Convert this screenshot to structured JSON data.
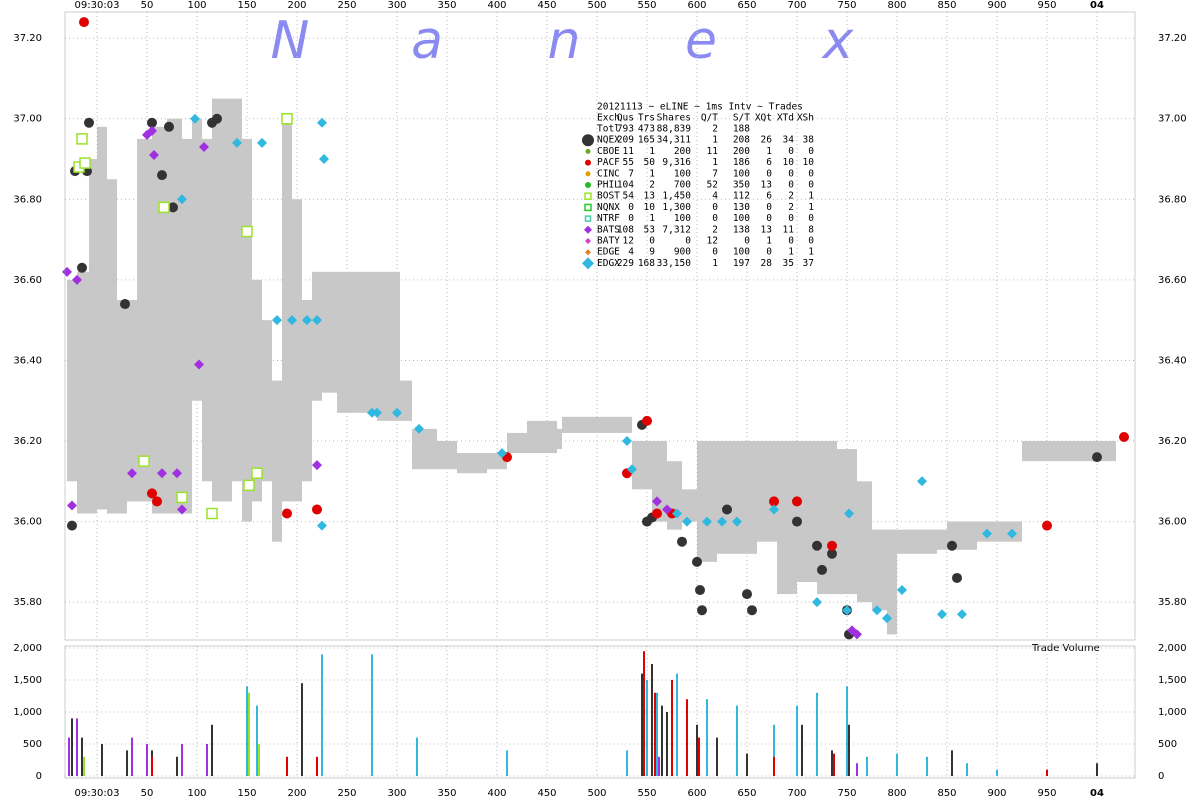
{
  "watermark": [
    "N",
    "a",
    "n",
    "e",
    "x"
  ],
  "legend_table": {
    "title": "20121113 ~ eLINE ~ 1ms Intv ~ Trades",
    "header": [
      "Exch",
      "Qus",
      "Trs",
      "Shares",
      "Q/T",
      "S/T",
      "XQt",
      "XTd",
      "XSh"
    ],
    "rows": [
      {
        "cells": [
          "Totl",
          "793",
          "473",
          "88,839",
          "2",
          "188"
        ]
      },
      {
        "cells": [
          "NQEX",
          "209",
          "165",
          "34,311",
          "1",
          "208",
          "26",
          "34",
          "38"
        ],
        "color": "#333333",
        "marker": "circle",
        "size": 6
      },
      {
        "cells": [
          "CBOE",
          "11",
          "1",
          "200",
          "11",
          "200",
          "1",
          "0",
          "0"
        ],
        "color": "#66aa22",
        "marker": "circle",
        "size": 2.5
      },
      {
        "cells": [
          "PACF",
          "55",
          "50",
          "9,316",
          "1",
          "186",
          "6",
          "10",
          "10"
        ],
        "color": "#e00000",
        "marker": "circle",
        "size": 3
      },
      {
        "cells": [
          "CINC",
          "7",
          "1",
          "100",
          "7",
          "100",
          "0",
          "0",
          "0"
        ],
        "color": "#e0a000",
        "marker": "circle",
        "size": 2.5
      },
      {
        "cells": [
          "PHIL",
          "104",
          "2",
          "700",
          "52",
          "350",
          "13",
          "0",
          "0"
        ],
        "color": "#22bb22",
        "marker": "circle",
        "size": 3
      },
      {
        "cells": [
          "BOST",
          "54",
          "13",
          "1,450",
          "4",
          "112",
          "6",
          "2",
          "1"
        ],
        "color": "#99e22a",
        "marker": "square",
        "size": 3
      },
      {
        "cells": [
          "NQNX",
          "0",
          "10",
          "1,300",
          "0",
          "130",
          "0",
          "2",
          "1"
        ],
        "color": "#22cc22",
        "marker": "square",
        "size": 3
      },
      {
        "cells": [
          "NTRF",
          "0",
          "1",
          "100",
          "0",
          "100",
          "0",
          "0",
          "0"
        ],
        "color": "#44ccaa",
        "marker": "square",
        "size": 2.5
      },
      {
        "cells": [
          "BATS",
          "108",
          "53",
          "7,312",
          "2",
          "138",
          "13",
          "11",
          "8"
        ],
        "color": "#a030e0",
        "marker": "diamond",
        "size": 4
      },
      {
        "cells": [
          "BATY",
          "12",
          "0",
          "0",
          "12",
          "0",
          "1",
          "0",
          "0"
        ],
        "color": "#d040d0",
        "marker": "diamond",
        "size": 3
      },
      {
        "cells": [
          "EDGE",
          "4",
          "9",
          "900",
          "0",
          "100",
          "0",
          "1",
          "1"
        ],
        "color": "#e08020",
        "marker": "diamond",
        "size": 3
      },
      {
        "cells": [
          "EDGX",
          "229",
          "168",
          "33,150",
          "1",
          "197",
          "28",
          "35",
          "37"
        ],
        "color": "#30b8e0",
        "marker": "diamond",
        "size": 6
      }
    ]
  },
  "chart_data": [
    {
      "type": "scatter",
      "xlim": [
        -32,
        1038
      ],
      "ylim": [
        35.706,
        37.265
      ],
      "xticks": [
        {
          "value": 0,
          "label": "09:30:03"
        },
        50,
        100,
        150,
        200,
        250,
        300,
        350,
        400,
        450,
        500,
        550,
        600,
        650,
        700,
        750,
        800,
        850,
        900,
        950,
        {
          "value": 1000,
          "label": "04"
        }
      ],
      "yticks": [
        {
          "value": 35.8,
          "label": "35.80"
        },
        {
          "value": 36,
          "label": "36.00"
        },
        {
          "value": 36.2,
          "label": "36.20"
        },
        {
          "value": 36.4,
          "label": "36.40"
        },
        {
          "value": 36.6,
          "label": "36.60"
        },
        {
          "value": 36.8,
          "label": "36.80"
        },
        {
          "value": 37,
          "label": "37.00"
        },
        {
          "value": 37.2,
          "label": "37.20"
        }
      ],
      "grid": true,
      "band": {
        "color": "#c8c8c8",
        "x": [
          -30,
          -20,
          -8,
          0,
          10,
          20,
          30,
          40,
          55,
          70,
          85,
          95,
          105,
          115,
          125,
          135,
          145,
          155,
          165,
          175,
          185,
          195,
          205,
          215,
          225,
          240,
          260,
          280,
          300,
          303,
          315,
          340,
          360,
          390,
          410,
          430,
          460,
          465,
          520,
          535,
          555,
          570,
          585,
          600,
          620,
          640,
          660,
          680,
          700,
          720,
          740,
          760,
          775,
          790,
          800,
          840,
          850,
          880,
          920,
          925,
          1000,
          1015
        ],
        "low": [
          36.1,
          36.02,
          36.02,
          36.03,
          36.02,
          36.02,
          36.05,
          36.05,
          36.02,
          36.02,
          36.02,
          36.3,
          36.1,
          36.05,
          36.05,
          36.1,
          36.0,
          36.05,
          36.1,
          35.95,
          36.05,
          36.05,
          36.1,
          36.3,
          36.32,
          36.27,
          36.27,
          36.25,
          36.25,
          36.25,
          36.13,
          36.13,
          36.12,
          36.13,
          36.17,
          36.17,
          36.18,
          36.22,
          36.22,
          36.08,
          36.0,
          35.98,
          36.0,
          35.9,
          35.92,
          35.92,
          35.95,
          35.82,
          35.85,
          35.82,
          35.82,
          35.8,
          35.78,
          35.72,
          35.92,
          35.93,
          35.93,
          35.95,
          35.95,
          36.15,
          36.15,
          36.15
        ],
        "high": [
          36.6,
          36.62,
          36.9,
          36.98,
          36.85,
          36.55,
          36.55,
          36.95,
          36.98,
          37.0,
          36.95,
          37.0,
          36.95,
          37.05,
          37.05,
          37.05,
          36.95,
          36.6,
          36.5,
          36.35,
          37.0,
          36.8,
          36.55,
          36.62,
          36.62,
          36.62,
          36.62,
          36.62,
          36.62,
          36.35,
          36.23,
          36.2,
          36.17,
          36.17,
          36.22,
          36.25,
          36.23,
          36.26,
          36.26,
          36.2,
          36.2,
          36.15,
          36.08,
          36.2,
          36.2,
          36.2,
          36.2,
          36.2,
          36.2,
          36.2,
          36.18,
          36.1,
          35.98,
          35.98,
          35.98,
          35.98,
          36.0,
          36.0,
          36.0,
          36.2,
          36.2,
          36.2
        ]
      },
      "series": [
        {
          "name": "NQEX",
          "color": "#333333",
          "marker": "circle",
          "x": [
            -22,
            -10,
            -8,
            -15,
            -25,
            28,
            55,
            65,
            72,
            76,
            115,
            120,
            545,
            550,
            555,
            585,
            600,
            603,
            605,
            630,
            650,
            655,
            700,
            720,
            725,
            735,
            750,
            752,
            855,
            860,
            1000
          ],
          "values": [
            36.87,
            36.87,
            36.99,
            36.63,
            35.99,
            36.54,
            36.99,
            36.86,
            36.98,
            36.78,
            36.99,
            37.0,
            36.24,
            36.0,
            36.01,
            35.95,
            35.9,
            35.83,
            35.78,
            36.03,
            35.82,
            35.78,
            36.0,
            35.94,
            35.88,
            35.92,
            35.78,
            35.72,
            35.94,
            35.86,
            36.16
          ]
        },
        {
          "name": "PACF",
          "color": "#e00000",
          "marker": "circle",
          "x": [
            -13,
            55,
            60,
            190,
            220,
            410,
            530,
            550,
            560,
            575,
            677,
            700,
            735,
            950,
            1027
          ],
          "values": [
            37.24,
            36.07,
            36.05,
            36.02,
            36.03,
            36.16,
            36.12,
            36.25,
            36.02,
            36.02,
            36.05,
            36.05,
            35.94,
            35.99,
            36.21
          ]
        },
        {
          "name": "BATS",
          "color": "#a030e0",
          "marker": "diamond",
          "x": [
            -30,
            -20,
            -25,
            50,
            55,
            57,
            35,
            65,
            80,
            85,
            102,
            107,
            220,
            560,
            570,
            755,
            760
          ],
          "values": [
            36.62,
            36.6,
            36.04,
            36.96,
            36.97,
            36.91,
            36.12,
            36.12,
            36.12,
            36.03,
            36.39,
            36.93,
            36.14,
            36.05,
            36.03,
            35.73,
            35.72
          ]
        },
        {
          "name": "EDGX",
          "color": "#30b8e0",
          "marker": "diamond",
          "x": [
            140,
            165,
            225,
            227,
            180,
            195,
            210,
            220,
            225,
            275,
            280,
            300,
            322,
            405,
            530,
            535,
            580,
            590,
            610,
            625,
            640,
            677,
            720,
            750,
            752,
            780,
            790,
            805,
            825,
            845,
            865,
            890,
            915,
            98,
            85
          ],
          "values": [
            36.94,
            36.94,
            36.99,
            36.9,
            36.5,
            36.5,
            36.5,
            36.5,
            35.99,
            36.27,
            36.27,
            36.27,
            36.23,
            36.17,
            36.2,
            36.13,
            36.02,
            36.0,
            36.0,
            36.0,
            36.0,
            36.03,
            35.8,
            35.78,
            36.02,
            35.78,
            35.76,
            35.83,
            36.1,
            35.77,
            35.77,
            35.97,
            35.97,
            37.0,
            36.8
          ]
        },
        {
          "name": "BOST",
          "color": "#99e22a",
          "marker": "square",
          "x": [
            -15,
            -18,
            -12,
            47,
            67,
            85,
            115,
            150,
            152,
            160,
            190
          ],
          "values": [
            36.95,
            36.88,
            36.89,
            36.15,
            36.78,
            36.06,
            36.02,
            36.72,
            36.09,
            36.12,
            37.0
          ]
        }
      ]
    },
    {
      "type": "bar",
      "label": "Trade Volume",
      "xlim": [
        -32,
        1038
      ],
      "ylim": [
        -31,
        2031
      ],
      "xticks": [
        {
          "value": 0,
          "label": "09:30:03"
        },
        50,
        100,
        150,
        200,
        250,
        300,
        350,
        400,
        450,
        500,
        550,
        600,
        650,
        700,
        750,
        800,
        850,
        900,
        950,
        {
          "value": 1000,
          "label": "04"
        }
      ],
      "yticks": [
        0,
        500,
        {
          "value": 1000,
          "label": "1,000"
        },
        {
          "value": 1500,
          "label": "1,500"
        },
        {
          "value": 2000,
          "label": "2,000"
        }
      ],
      "grid": true,
      "series": [
        {
          "name": "EDGX",
          "color": "#30b8e0",
          "x": [
            150,
            160,
            225,
            275,
            320,
            410,
            530,
            550,
            560,
            580,
            610,
            640,
            677,
            700,
            720,
            750,
            770,
            800,
            830,
            870,
            900
          ],
          "values": [
            1400,
            1100,
            1900,
            1900,
            600,
            400,
            400,
            1500,
            1300,
            1600,
            1200,
            1100,
            800,
            1100,
            1300,
            1400,
            300,
            350,
            300,
            200,
            100
          ]
        },
        {
          "name": "NQEX",
          "color": "#333333",
          "x": [
            -25,
            -15,
            5,
            30,
            55,
            80,
            115,
            205,
            545,
            555,
            565,
            570,
            600,
            620,
            650,
            705,
            735,
            752,
            855,
            1000
          ],
          "values": [
            900,
            600,
            500,
            400,
            400,
            300,
            800,
            1450,
            1600,
            1750,
            1100,
            1000,
            800,
            600,
            350,
            800,
            400,
            800,
            400,
            200
          ]
        },
        {
          "name": "PACF",
          "color": "#e00000",
          "x": [
            55,
            190,
            220,
            547,
            558,
            575,
            590,
            602,
            677,
            737,
            950
          ],
          "values": [
            300,
            300,
            300,
            1950,
            1300,
            1500,
            1200,
            600,
            300,
            350,
            100
          ]
        },
        {
          "name": "BATS",
          "color": "#a030e0",
          "x": [
            -28,
            -20,
            35,
            50,
            85,
            110,
            562,
            760
          ],
          "values": [
            600,
            900,
            600,
            500,
            500,
            500,
            300,
            200
          ]
        },
        {
          "name": "BOST",
          "color": "#99e22a",
          "x": [
            -13,
            152,
            162
          ],
          "values": [
            300,
            1300,
            500
          ]
        }
      ]
    }
  ]
}
